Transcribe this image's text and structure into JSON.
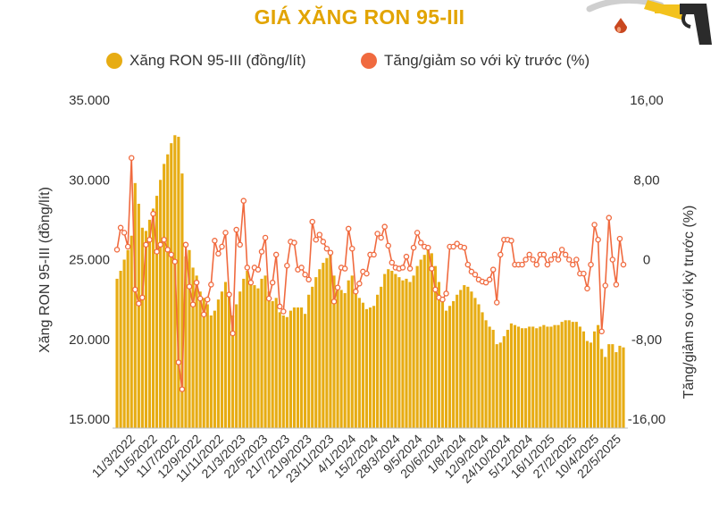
{
  "colors": {
    "title": "#e2a400",
    "bar": "#e7ac13",
    "bar_dark": "#c28e07",
    "line": "#f06a3f",
    "axis_text": "#333333"
  },
  "chart_data": {
    "type": "bar",
    "title": "GIÁ XĂNG RON 95-III",
    "legend": [
      {
        "name": "Xăng RON 95-III (đồng/lít)",
        "color": "#e7ac13"
      },
      {
        "name": "Tăng/giảm so với kỳ trước (%)",
        "color": "#f06a3f"
      }
    ],
    "ylabel_left": "Xăng RON 95-III (đồng/lít)",
    "ylabel_right": "Tăng/giảm so với kỳ trước (%)",
    "y_left_range": [
      15000,
      35000
    ],
    "y_left_ticks": [
      "15.000",
      "20.000",
      "25.000",
      "30.000",
      "35.000"
    ],
    "y_left_tick_values": [
      15000,
      20000,
      25000,
      30000,
      35000
    ],
    "y_right_range": [
      -16,
      16
    ],
    "y_right_ticks": [
      "-16,00",
      "-8,00",
      "0",
      "8,00",
      "16,00"
    ],
    "y_right_tick_values": [
      -16,
      -8,
      0,
      8,
      16
    ],
    "x_labels": [
      "11/3/2022",
      "11/5/2022",
      "11/7/2022",
      "12/9/2022",
      "11/11/2022",
      "21/3/2023",
      "22/5/2023",
      "21/7/2023",
      "21/9/2023",
      "23/11/2023",
      "4/1/2024",
      "15/2/2024",
      "28/3/2024",
      "9/5/2024",
      "20/6/2024",
      "1/8/2024",
      "12/9/2024",
      "24/10/2024",
      "5/12/2024",
      "16/1/2025",
      "27/2/2025",
      "10/4/2025",
      "22/5/2025"
    ],
    "series": [
      {
        "name": "Xăng RON 95-III (đồng/lít)",
        "type": "bar",
        "axis": "left",
        "values": [
          23800,
          24300,
          25000,
          25600,
          26500,
          29800,
          28500,
          27000,
          26800,
          27500,
          28200,
          29000,
          30000,
          31000,
          31600,
          32300,
          32800,
          32700,
          30400,
          25200,
          25600,
          24500,
          24000,
          23000,
          22600,
          22200,
          21500,
          21800,
          22500,
          23000,
          23600,
          22800,
          21500,
          22200,
          23000,
          23800,
          24300,
          23500,
          23400,
          23200,
          23800,
          24000,
          23000,
          22400,
          22600,
          21700,
          21500,
          21400,
          21800,
          22000,
          22000,
          22000,
          21600,
          22800,
          23300,
          23900,
          24400,
          24800,
          25100,
          25400,
          24000,
          23300,
          23100,
          22900,
          23700,
          24000,
          23200,
          22600,
          22300,
          21900,
          22000,
          22100,
          22800,
          23300,
          24100,
          24400,
          24300,
          24100,
          23900,
          23700,
          23800,
          23600,
          24000,
          24600,
          25000,
          25300,
          25600,
          25400,
          24600,
          23600,
          22600,
          21800,
          22100,
          22400,
          22800,
          23100,
          23400,
          23300,
          23000,
          22600,
          22200,
          21700,
          21200,
          20800,
          20600,
          19700,
          19800,
          20200,
          20600,
          21000,
          20900,
          20800,
          20700,
          20700,
          20800,
          20800,
          20700,
          20800,
          20900,
          20800,
          20800,
          20900,
          20900,
          21100,
          21200,
          21200,
          21100,
          21100,
          20800,
          20500,
          19900,
          19800,
          20500,
          20900,
          19400,
          18900,
          19700,
          19700,
          19200,
          19600,
          19500
        ]
      },
      {
        "name": "Tăng/giảm so với kỳ trước (%)",
        "type": "line",
        "axis": "right",
        "values": [
          1.0,
          3.2,
          2.7,
          1.3,
          10.2,
          -3.0,
          -4.4,
          -3.8,
          1.5,
          2.0,
          4.6,
          0.8,
          1.5,
          2.0,
          1.0,
          0.5,
          -0.2,
          -10.3,
          -13.0,
          1.5,
          -2.7,
          -4.5,
          -2.3,
          -3.9,
          -5.5,
          -4.0,
          -2.5,
          1.9,
          0.6,
          1.3,
          2.7,
          -3.5,
          -7.4,
          3.0,
          1.5,
          5.9,
          -0.8,
          -2.3,
          -0.8,
          -1.0,
          0.8,
          2.2,
          -3.9,
          -2.3,
          0.5,
          -4.7,
          -5.2,
          -0.6,
          1.8,
          1.7,
          -1.0,
          -0.8,
          -1.5,
          -2.0,
          3.8,
          2.0,
          2.5,
          1.8,
          1.1,
          0.7,
          -4.2,
          -2.8,
          -0.8,
          -0.9,
          3.1,
          1.1,
          -3.2,
          -2.4,
          -1.2,
          -1.4,
          0.5,
          0.5,
          2.6,
          2.2,
          3.3,
          1.4,
          -0.3,
          -0.8,
          -0.9,
          -0.8,
          0.3,
          -0.9,
          1.2,
          2.7,
          1.7,
          1.3,
          1.2,
          -0.9,
          -3.0,
          -3.8,
          -4.0,
          -3.4,
          1.3,
          1.3,
          1.6,
          1.3,
          1.2,
          -0.5,
          -1.2,
          -1.5,
          -2.0,
          -2.2,
          -2.3,
          -2.0,
          -1.0,
          -4.3,
          0.5,
          2.0,
          2.0,
          1.9,
          -0.5,
          -0.5,
          -0.5,
          0.0,
          0.5,
          0.0,
          -0.5,
          0.5,
          0.5,
          -0.5,
          0.0,
          0.5,
          0.0,
          1.0,
          0.5,
          0.0,
          -0.5,
          0.0,
          -1.4,
          -1.4,
          -2.9,
          -0.5,
          3.5,
          2.0,
          -7.2,
          -2.6,
          4.2,
          0.0,
          -2.5,
          2.1,
          -0.5
        ]
      }
    ]
  }
}
